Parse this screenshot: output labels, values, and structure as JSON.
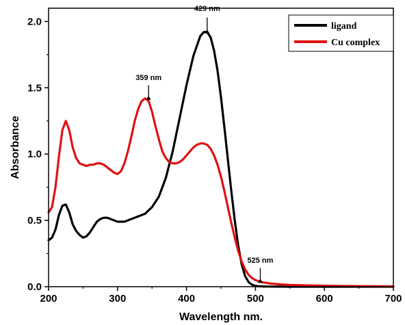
{
  "chart_data": {
    "type": "line",
    "xlabel": "Wavelength nm.",
    "ylabel": "Absorbance",
    "xlim": [
      200,
      700
    ],
    "ylim": [
      0,
      2.1
    ],
    "x_ticks": [
      200,
      300,
      400,
      500,
      600,
      700
    ],
    "y_ticks": [
      0.0,
      0.5,
      1.0,
      1.5,
      2.0
    ],
    "y_tick_labels": [
      "0.0",
      "0.5",
      "1.0",
      "1.5",
      "2.0"
    ],
    "legend_position": "top-right",
    "series": [
      {
        "name": "ligand",
        "color": "#000000",
        "x": [
          200,
          205,
          210,
          215,
          220,
          225,
          230,
          235,
          240,
          245,
          250,
          255,
          260,
          265,
          270,
          275,
          280,
          285,
          290,
          300,
          310,
          320,
          330,
          340,
          350,
          360,
          370,
          380,
          390,
          400,
          410,
          420,
          425,
          430,
          435,
          440,
          445,
          450,
          455,
          460,
          465,
          470,
          475,
          480,
          485,
          490,
          495,
          500,
          505,
          510,
          520,
          550,
          600,
          650,
          700
        ],
        "y": [
          0.35,
          0.37,
          0.43,
          0.54,
          0.61,
          0.62,
          0.56,
          0.47,
          0.42,
          0.39,
          0.37,
          0.38,
          0.41,
          0.45,
          0.49,
          0.51,
          0.52,
          0.52,
          0.51,
          0.49,
          0.49,
          0.51,
          0.53,
          0.55,
          0.6,
          0.68,
          0.82,
          1.02,
          1.27,
          1.52,
          1.74,
          1.89,
          1.92,
          1.92,
          1.88,
          1.78,
          1.63,
          1.43,
          1.2,
          0.96,
          0.72,
          0.5,
          0.31,
          0.17,
          0.08,
          0.035,
          0.015,
          0.006,
          0.003,
          0.002,
          0.001,
          0.0,
          0.0,
          0.0,
          0.0
        ]
      },
      {
        "name": "Cu complex",
        "color": "#e01010",
        "x": [
          200,
          205,
          210,
          215,
          220,
          225,
          230,
          235,
          240,
          245,
          250,
          255,
          260,
          265,
          270,
          275,
          280,
          285,
          290,
          295,
          300,
          305,
          310,
          315,
          320,
          325,
          330,
          335,
          340,
          345,
          350,
          355,
          360,
          365,
          370,
          375,
          380,
          385,
          390,
          395,
          400,
          405,
          410,
          415,
          420,
          425,
          430,
          435,
          440,
          445,
          450,
          455,
          460,
          465,
          470,
          475,
          480,
          485,
          490,
          495,
          500,
          505,
          510,
          520,
          530,
          540,
          550,
          600,
          650,
          700
        ],
        "y": [
          0.56,
          0.6,
          0.75,
          0.98,
          1.18,
          1.25,
          1.18,
          1.05,
          0.97,
          0.93,
          0.92,
          0.91,
          0.92,
          0.92,
          0.93,
          0.93,
          0.92,
          0.9,
          0.88,
          0.86,
          0.85,
          0.87,
          0.93,
          1.02,
          1.13,
          1.25,
          1.34,
          1.4,
          1.42,
          1.4,
          1.32,
          1.21,
          1.11,
          1.02,
          0.97,
          0.94,
          0.93,
          0.93,
          0.94,
          0.96,
          0.99,
          1.02,
          1.05,
          1.07,
          1.08,
          1.08,
          1.07,
          1.04,
          0.99,
          0.92,
          0.83,
          0.72,
          0.6,
          0.48,
          0.37,
          0.27,
          0.19,
          0.13,
          0.09,
          0.065,
          0.05,
          0.04,
          0.033,
          0.025,
          0.02,
          0.016,
          0.013,
          0.007,
          0.004,
          0.003
        ]
      }
    ],
    "annotations": [
      {
        "text": "429 nm",
        "x": 430,
        "y_tip": 1.94,
        "y_base": 2.03,
        "y_label": 2.1
      },
      {
        "text": "359 nm",
        "x": 345,
        "y_tip": 1.44,
        "y_base": 1.52,
        "y_label": 1.58
      },
      {
        "text": "525 nm",
        "x": 507,
        "y_tip": 0.06,
        "y_base": 0.14,
        "y_label": 0.2
      }
    ]
  }
}
